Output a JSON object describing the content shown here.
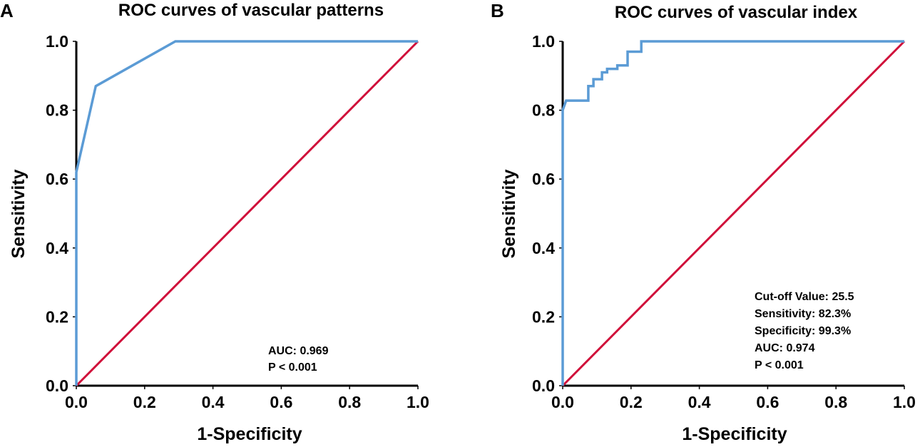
{
  "chart_data": [
    {
      "type": "line",
      "panel": "A",
      "title": "ROC curves of vascular patterns",
      "xlabel": "1-Specificity",
      "ylabel": "Sensitivity",
      "xlim": [
        0,
        1
      ],
      "ylim": [
        0,
        1
      ],
      "x_ticks": [
        "0.0",
        "0.2",
        "0.4",
        "0.6",
        "0.8",
        "1.0"
      ],
      "y_ticks": [
        "0.0",
        "0.2",
        "0.4",
        "0.6",
        "0.8",
        "1.0"
      ],
      "grid": false,
      "series": [
        {
          "name": "ROC curve",
          "color": "#5b9bd5",
          "points": [
            [
              0,
              0
            ],
            [
              0,
              0.62
            ],
            [
              0.057,
              0.87
            ],
            [
              0.29,
              1.0
            ],
            [
              1.0,
              1.0
            ]
          ]
        },
        {
          "name": "Reference line",
          "color": "#d0103a",
          "points": [
            [
              0,
              0
            ],
            [
              1,
              1
            ]
          ]
        }
      ],
      "annotations": [
        "AUC: 0.969",
        "P < 0.001"
      ]
    },
    {
      "type": "line",
      "panel": "B",
      "title": "ROC curves of vascular index",
      "xlabel": "1-Specificity",
      "ylabel": "Sensitivity",
      "xlim": [
        0,
        1
      ],
      "ylim": [
        0,
        1
      ],
      "x_ticks": [
        "0.0",
        "0.2",
        "0.4",
        "0.6",
        "0.8",
        "1.0"
      ],
      "y_ticks": [
        "0.0",
        "0.2",
        "0.4",
        "0.6",
        "0.8",
        "1.0"
      ],
      "grid": false,
      "series": [
        {
          "name": "ROC curve",
          "color": "#5b9bd5",
          "points": [
            [
              0,
              0
            ],
            [
              0,
              0.8
            ],
            [
              0.01,
              0.828
            ],
            [
              0.075,
              0.828
            ],
            [
              0.075,
              0.87
            ],
            [
              0.09,
              0.87
            ],
            [
              0.09,
              0.89
            ],
            [
              0.115,
              0.89
            ],
            [
              0.115,
              0.91
            ],
            [
              0.13,
              0.91
            ],
            [
              0.13,
              0.92
            ],
            [
              0.16,
              0.92
            ],
            [
              0.16,
              0.93
            ],
            [
              0.19,
              0.93
            ],
            [
              0.19,
              0.97
            ],
            [
              0.23,
              0.97
            ],
            [
              0.23,
              1.0
            ],
            [
              1.0,
              1.0
            ]
          ]
        },
        {
          "name": "Reference line",
          "color": "#d0103a",
          "points": [
            [
              0,
              0
            ],
            [
              1,
              1
            ]
          ]
        }
      ],
      "annotations": [
        "Cut-off Value: 25.5",
        "Sensitivity: 82.3%",
        "Specificity: 99.3%",
        "AUC: 0.974",
        "P < 0.001"
      ]
    }
  ]
}
